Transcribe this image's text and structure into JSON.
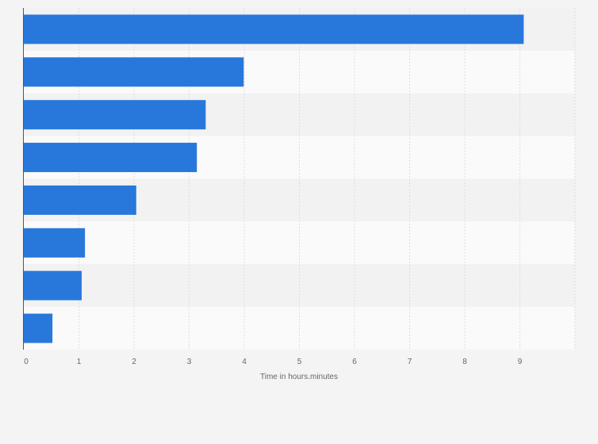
{
  "chart_data": {
    "type": "bar",
    "orientation": "horizontal",
    "title": "",
    "xlabel": "Time in hours.minutes",
    "ylabel": "",
    "categories": [
      "",
      "",
      "",
      "",
      "",
      "",
      "",
      ""
    ],
    "values": [
      9.07,
      3.99,
      3.3,
      3.14,
      2.04,
      1.11,
      1.05,
      0.52
    ],
    "xlim": [
      0,
      10
    ],
    "xticks": [
      "0",
      "1",
      "2",
      "3",
      "4",
      "5",
      "6",
      "7",
      "8",
      "9"
    ],
    "grid": true,
    "bar_color": "#2878dc"
  }
}
